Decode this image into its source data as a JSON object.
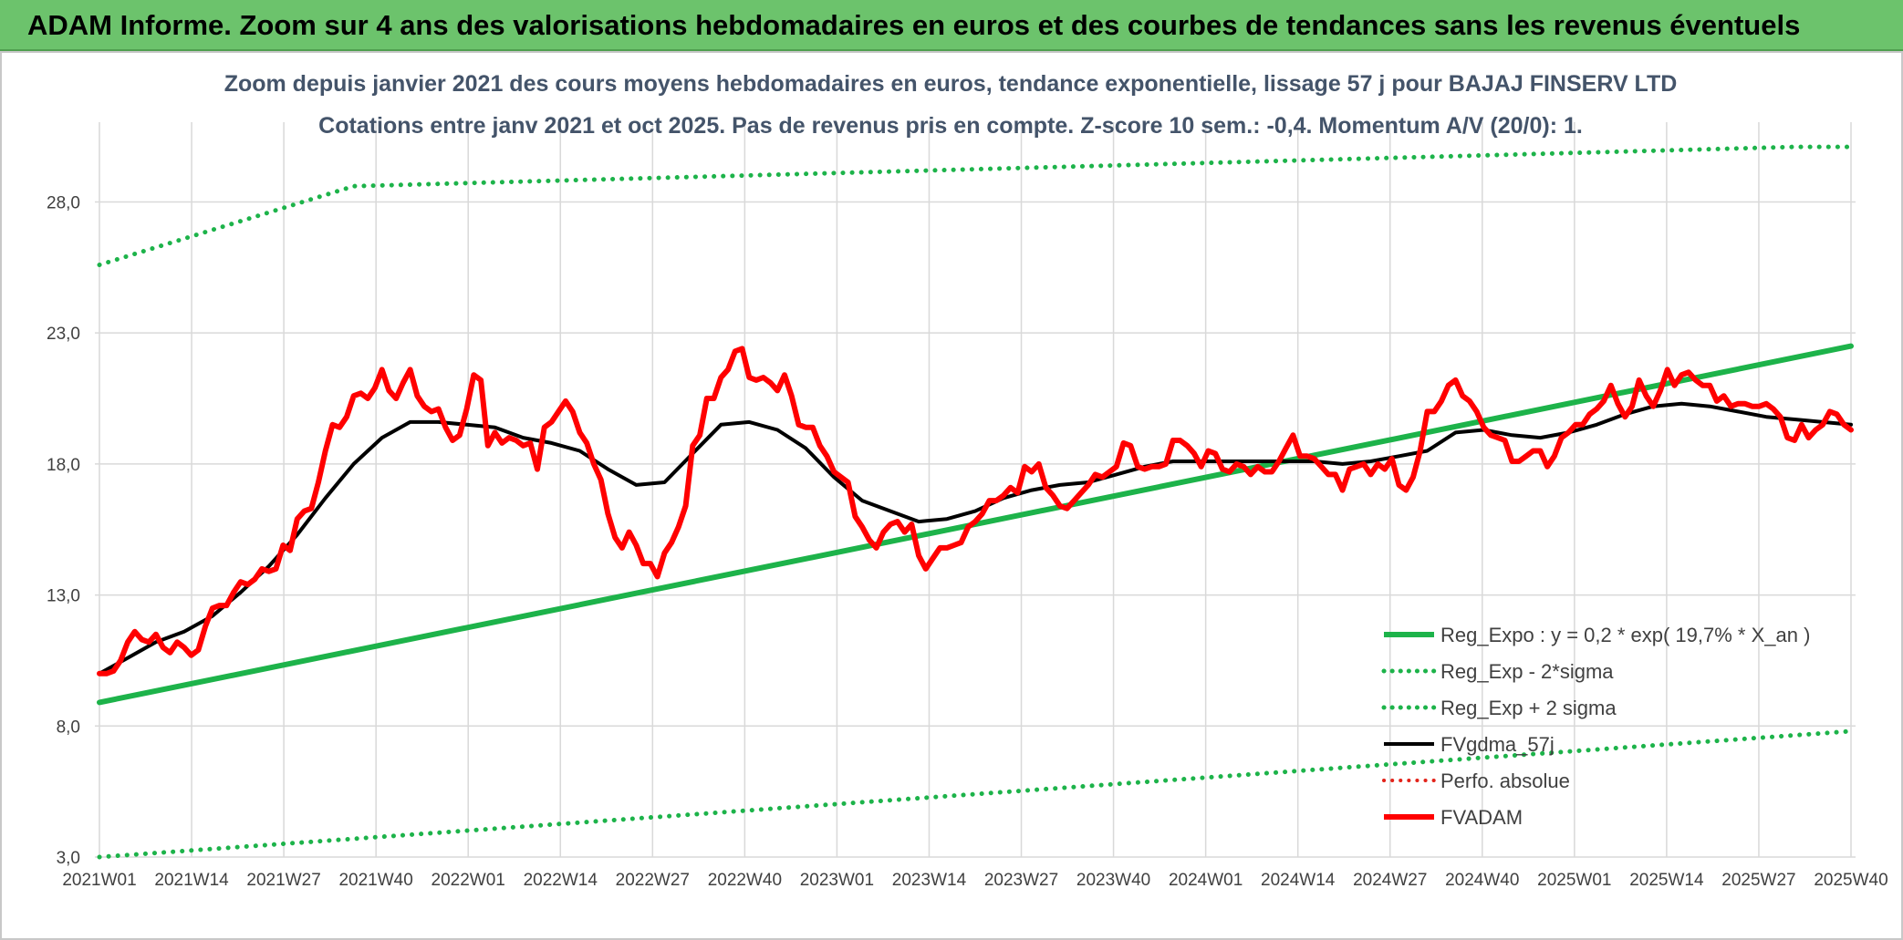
{
  "banner": {
    "title": "ADAM Informe. Zoom sur 4 ans des valorisations hebdomadaires en euros et des courbes de tendances sans les revenus éventuels"
  },
  "chart_data": {
    "type": "line",
    "title_line1": "Zoom depuis janvier 2021 des cours moyens hebdomadaires en euros, tendance exponentielle, lissage 57 j pour BAJAJ FINSERV LTD",
    "title_line2": "Cotations entre janv 2021 et oct 2025. Pas de revenus pris en compte. Z-score 10 sem.: -0,4. Momentum A/V (20/0): 1.",
    "x_tick_labels": [
      "2021W01",
      "2021W14",
      "2021W27",
      "2021W40",
      "2022W01",
      "2022W14",
      "2022W27",
      "2022W40",
      "2023W01",
      "2023W14",
      "2023W27",
      "2023W40",
      "2024W01",
      "2024W14",
      "2024W27",
      "2024W40",
      "2025W01",
      "2025W14",
      "2025W27",
      "2025W40"
    ],
    "x_range_weeks": [
      0,
      248
    ],
    "y_ticks": [
      3,
      8,
      13,
      18,
      23,
      28
    ],
    "y_tick_labels": [
      "3,0",
      "8,0",
      "13,0",
      "18,0",
      "23,0",
      "28,0"
    ],
    "ylim": [
      3,
      30
    ],
    "grid": true,
    "legend_position": "bottom-right",
    "series": [
      {
        "name": "Reg_Expo : y = 0,2 * exp( 19,7% *  X_an )",
        "color": "#1db34a",
        "style": "solid",
        "width": 6,
        "x": [
          0,
          248
        ],
        "y": [
          8.9,
          22.5
        ]
      },
      {
        "name": "Reg_Exp - 2*sigma",
        "color": "#1db34a",
        "style": "dotted",
        "width": 5,
        "x": [
          0,
          248
        ],
        "y": [
          3.0,
          7.8
        ]
      },
      {
        "name": "Reg_Exp + 2 sigma",
        "color": "#1db34a",
        "style": "dotted",
        "width": 5,
        "x": [
          0,
          36,
          240,
          248
        ],
        "y": [
          25.6,
          28.6,
          30.1,
          30.1
        ]
      },
      {
        "name": "FVgdma_57j",
        "color": "#000000",
        "style": "solid",
        "width": 4,
        "x": [
          0,
          4,
          8,
          12,
          16,
          20,
          24,
          28,
          32,
          36,
          40,
          44,
          48,
          52,
          56,
          60,
          64,
          68,
          72,
          76,
          80,
          84,
          88,
          92,
          96,
          100,
          104,
          108,
          112,
          116,
          120,
          124,
          128,
          132,
          136,
          140,
          144,
          148,
          152,
          156,
          160,
          164,
          168,
          172,
          176,
          180,
          184,
          188,
          192,
          196,
          200,
          204,
          208,
          212,
          216,
          220,
          224,
          228,
          232,
          236,
          240,
          244,
          248
        ],
        "y": [
          10.0,
          10.6,
          11.2,
          11.6,
          12.2,
          13.1,
          14.1,
          15.3,
          16.7,
          18.0,
          19.0,
          19.6,
          19.6,
          19.5,
          19.4,
          19.0,
          18.8,
          18.5,
          17.8,
          17.2,
          17.3,
          18.4,
          19.5,
          19.6,
          19.3,
          18.6,
          17.5,
          16.6,
          16.2,
          15.8,
          15.9,
          16.2,
          16.7,
          17.0,
          17.2,
          17.3,
          17.6,
          17.9,
          18.1,
          18.1,
          18.1,
          18.1,
          18.1,
          18.1,
          18.0,
          18.1,
          18.3,
          18.5,
          19.2,
          19.3,
          19.1,
          19.0,
          19.2,
          19.5,
          19.9,
          20.2,
          20.3,
          20.2,
          20.0,
          19.8,
          19.7,
          19.6,
          19.5
        ]
      },
      {
        "name": "Perfo. absolue",
        "color": "#e3231a",
        "style": "dotted",
        "width": 4,
        "x": [],
        "y": []
      },
      {
        "name": "FVADAM",
        "color": "#ff0000",
        "style": "solid",
        "width": 6,
        "x": [
          0,
          1,
          2,
          3,
          4,
          5,
          6,
          7,
          8,
          9,
          10,
          11,
          12,
          13,
          14,
          15,
          16,
          17,
          18,
          19,
          20,
          21,
          22,
          23,
          24,
          25,
          26,
          27,
          28,
          29,
          30,
          31,
          32,
          33,
          34,
          35,
          36,
          37,
          38,
          39,
          40,
          41,
          42,
          43,
          44,
          45,
          46,
          47,
          48,
          49,
          50,
          51,
          52,
          53,
          54,
          55,
          56,
          57,
          58,
          59,
          60,
          61,
          62,
          63,
          64,
          65,
          66,
          67,
          68,
          69,
          70,
          71,
          72,
          73,
          74,
          75,
          76,
          77,
          78,
          79,
          80,
          81,
          82,
          83,
          84,
          85,
          86,
          87,
          88,
          89,
          90,
          91,
          92,
          93,
          94,
          95,
          96,
          97,
          98,
          99,
          100,
          101,
          102,
          103,
          104,
          105,
          106,
          107,
          108,
          109,
          110,
          111,
          112,
          113,
          114,
          115,
          116,
          117,
          118,
          119,
          120,
          121,
          122,
          123,
          124,
          125,
          126,
          127,
          128,
          129,
          130,
          131,
          132,
          133,
          134,
          135,
          136,
          137,
          138,
          139,
          140,
          141,
          142,
          143,
          144,
          145,
          146,
          147,
          148,
          149,
          150,
          151,
          152,
          153,
          154,
          155,
          156,
          157,
          158,
          159,
          160,
          161,
          162,
          163,
          164,
          165,
          166,
          167,
          168,
          169,
          170,
          171,
          172,
          173,
          174,
          175,
          176,
          177,
          178,
          179,
          180,
          181,
          182,
          183,
          184,
          185,
          186,
          187,
          188,
          189,
          190,
          191,
          192,
          193,
          194,
          195,
          196,
          197,
          198,
          199,
          200,
          201,
          202,
          203,
          204,
          205,
          206,
          207,
          208,
          209,
          210,
          211,
          212,
          213,
          214,
          215,
          216,
          217,
          218,
          219,
          220,
          221,
          222,
          223,
          224,
          225,
          226,
          227,
          228,
          229,
          230,
          231,
          232,
          233,
          234,
          235,
          236,
          237,
          238,
          239,
          240,
          241,
          242,
          243,
          244,
          245,
          246,
          247,
          248
        ],
        "y": [
          10.0,
          10.0,
          10.1,
          10.5,
          11.2,
          11.6,
          11.3,
          11.2,
          11.5,
          11.0,
          10.8,
          11.2,
          11.0,
          10.7,
          10.9,
          11.8,
          12.5,
          12.6,
          12.6,
          13.1,
          13.5,
          13.4,
          13.6,
          14.0,
          13.9,
          14.0,
          14.9,
          14.7,
          15.9,
          16.2,
          16.3,
          17.3,
          18.5,
          19.5,
          19.4,
          19.8,
          20.6,
          20.7,
          20.5,
          20.9,
          21.6,
          20.8,
          20.5,
          21.1,
          21.6,
          20.6,
          20.2,
          20.0,
          20.1,
          19.4,
          18.9,
          19.1,
          20.1,
          21.4,
          21.2,
          18.7,
          19.2,
          18.8,
          19.0,
          18.9,
          18.7,
          18.8,
          17.8,
          19.4,
          19.6,
          20.0,
          20.4,
          20.0,
          19.2,
          18.8,
          18.0,
          17.4,
          16.1,
          15.2,
          14.8,
          15.4,
          14.9,
          14.2,
          14.2,
          13.7,
          14.6,
          15.0,
          15.6,
          16.4,
          18.7,
          19.1,
          20.5,
          20.5,
          21.3,
          21.6,
          22.3,
          22.4,
          21.3,
          21.2,
          21.3,
          21.1,
          20.8,
          21.4,
          20.6,
          19.5,
          19.4,
          19.4,
          18.7,
          18.3,
          17.7,
          17.5,
          17.3,
          16.0,
          15.6,
          15.1,
          14.8,
          15.4,
          15.7,
          15.8,
          15.4,
          15.7,
          14.5,
          14.0,
          14.4,
          14.8,
          14.8,
          14.9,
          15.0,
          15.6,
          15.8,
          16.1,
          16.6,
          16.6,
          16.8,
          17.1,
          16.9,
          17.9,
          17.7,
          18.0,
          17.1,
          16.8,
          16.4,
          16.3,
          16.6,
          16.9,
          17.2,
          17.6,
          17.5,
          17.7,
          17.9,
          18.8,
          18.7,
          17.9,
          17.8,
          17.9,
          17.9,
          18.0,
          18.9,
          18.9,
          18.7,
          18.4,
          17.9,
          18.5,
          18.4,
          17.8,
          17.7,
          18.0,
          17.9,
          17.6,
          17.9,
          17.7,
          17.7,
          18.1,
          18.6,
          19.1,
          18.3,
          18.3,
          18.2,
          17.9,
          17.6,
          17.6,
          17.0,
          17.8,
          17.9,
          18.0,
          17.6,
          18.0,
          17.8,
          18.2,
          17.2,
          17.0,
          17.5,
          18.5,
          20.0,
          20.0,
          20.4,
          21.0,
          21.2,
          20.6,
          20.4,
          20.0,
          19.4,
          19.1,
          19.0,
          18.9,
          18.1,
          18.1,
          18.3,
          18.5,
          18.5,
          17.9,
          18.3,
          19.0,
          19.2,
          19.5,
          19.5,
          19.9,
          20.1,
          20.4,
          21.0,
          20.3,
          19.8,
          20.2,
          21.2,
          20.6,
          20.2,
          20.8,
          21.6,
          21.0,
          21.4,
          21.5,
          21.2,
          21.0,
          21.0,
          20.4,
          20.6,
          20.2,
          20.3,
          20.3,
          20.2,
          20.2,
          20.3,
          20.1,
          19.8,
          19.0,
          18.9,
          19.5,
          19.0,
          19.3,
          19.5,
          20.0,
          19.9,
          19.5,
          19.3
        ]
      }
    ]
  }
}
